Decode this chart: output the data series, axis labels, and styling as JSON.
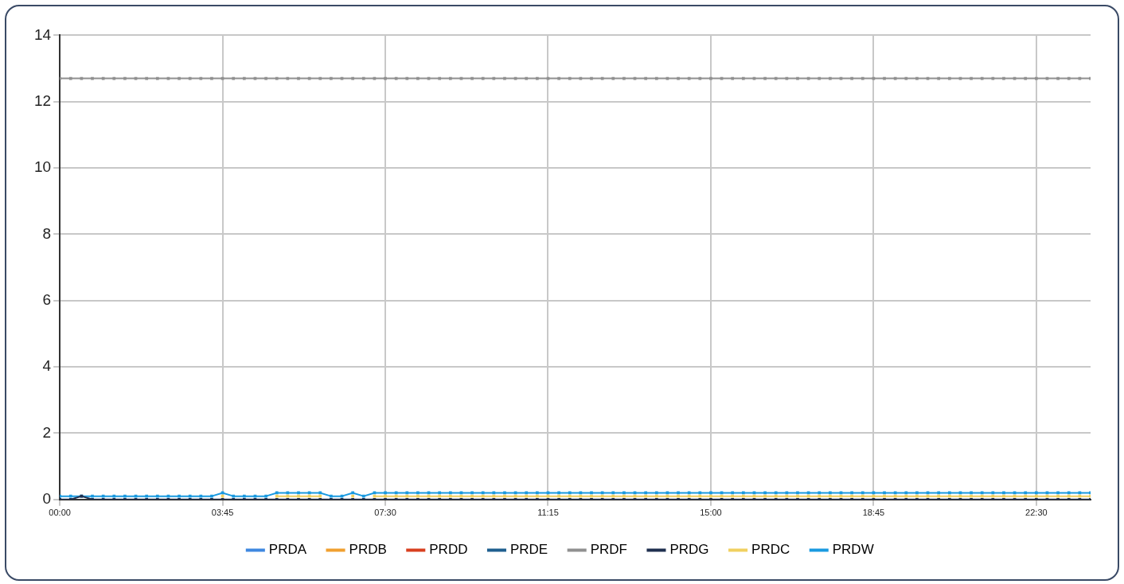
{
  "chart_data": {
    "type": "line",
    "x": [
      0,
      0.25,
      0.5,
      0.75,
      1,
      1.25,
      1.5,
      1.75,
      2,
      2.25,
      2.5,
      2.75,
      3,
      3.25,
      3.5,
      3.75,
      4,
      4.25,
      4.5,
      4.75,
      5,
      5.25,
      5.5,
      5.75,
      6,
      6.25,
      6.5,
      6.75,
      7,
      7.25,
      7.5,
      7.75,
      8,
      8.25,
      8.5,
      8.75,
      9,
      9.25,
      9.5,
      9.75,
      10,
      10.25,
      10.5,
      10.75,
      11,
      11.25,
      11.5,
      11.75,
      12,
      12.25,
      12.5,
      12.75,
      13,
      13.25,
      13.5,
      13.75,
      14,
      14.25,
      14.5,
      14.75,
      15,
      15.25,
      15.5,
      15.75,
      16,
      16.25,
      16.5,
      16.75,
      17,
      17.25,
      17.5,
      17.75,
      18,
      18.25,
      18.5,
      18.75,
      19,
      19.25,
      19.5,
      19.75,
      20,
      20.25,
      20.5,
      20.75,
      21,
      21.25,
      21.5,
      21.75,
      22,
      22.25,
      22.5,
      22.75,
      23,
      23.25,
      23.5,
      23.75
    ],
    "xlim": [
      0,
      23.75
    ],
    "xticks": [
      {
        "value": 0,
        "label": "00:00"
      },
      {
        "value": 3.75,
        "label": "03:45"
      },
      {
        "value": 7.5,
        "label": "07:30"
      },
      {
        "value": 11.25,
        "label": "11:15"
      },
      {
        "value": 15,
        "label": "15:00"
      },
      {
        "value": 18.75,
        "label": "18:45"
      },
      {
        "value": 22.5,
        "label": "22:30"
      }
    ],
    "ylim": [
      0,
      14
    ],
    "yticks": [
      0,
      2,
      4,
      6,
      8,
      10,
      12,
      14
    ],
    "grid": true,
    "legend": "bottom",
    "marker": "square",
    "line_style": "solid",
    "series": [
      {
        "name": "PRDA",
        "color": "#3f88e0",
        "values": [
          null,
          null,
          null,
          null,
          null,
          null,
          null,
          null,
          null,
          null,
          null,
          null,
          null,
          null,
          null,
          null,
          null,
          null,
          null,
          null,
          null,
          null,
          null,
          null,
          null,
          null,
          null,
          null,
          null,
          null,
          null,
          null,
          null,
          null,
          null,
          null,
          null,
          null,
          null,
          null,
          null,
          null,
          null,
          null,
          null,
          null,
          null,
          null,
          null,
          null,
          null,
          null,
          null,
          null,
          null,
          null,
          null,
          null,
          null,
          null,
          null,
          null,
          null,
          null,
          null,
          null,
          null,
          null,
          null,
          null,
          null,
          null,
          null,
          null,
          null,
          null,
          null,
          null,
          null,
          null,
          null,
          null,
          null,
          null,
          null,
          null,
          null,
          null,
          null,
          null,
          null,
          null,
          null,
          null,
          null,
          null
        ]
      },
      {
        "name": "PRDB",
        "color": "#f0a030",
        "values": [
          null,
          null,
          null,
          null,
          null,
          null,
          null,
          null,
          null,
          null,
          null,
          null,
          null,
          null,
          null,
          null,
          null,
          null,
          null,
          null,
          null,
          null,
          null,
          null,
          null,
          null,
          null,
          null,
          null,
          null,
          null,
          null,
          null,
          null,
          null,
          null,
          null,
          null,
          null,
          null,
          null,
          null,
          null,
          null,
          null,
          null,
          null,
          null,
          null,
          null,
          null,
          null,
          null,
          null,
          null,
          null,
          null,
          null,
          null,
          null,
          null,
          null,
          null,
          null,
          null,
          null,
          null,
          null,
          null,
          null,
          null,
          null,
          null,
          null,
          null,
          null,
          null,
          null,
          null,
          null,
          null,
          null,
          null,
          null,
          null,
          null,
          null,
          null,
          null,
          null,
          null,
          null,
          null,
          null,
          null,
          null
        ]
      },
      {
        "name": "PRDD",
        "color": "#d84020",
        "values": [
          null,
          null,
          null,
          null,
          null,
          null,
          null,
          null,
          null,
          null,
          null,
          null,
          null,
          null,
          null,
          null,
          null,
          null,
          null,
          null,
          null,
          null,
          null,
          null,
          null,
          null,
          null,
          null,
          null,
          null,
          null,
          null,
          null,
          null,
          null,
          null,
          null,
          null,
          null,
          null,
          null,
          null,
          null,
          null,
          null,
          null,
          null,
          null,
          null,
          null,
          null,
          null,
          null,
          null,
          null,
          null,
          null,
          null,
          null,
          null,
          null,
          null,
          null,
          null,
          null,
          null,
          null,
          null,
          null,
          null,
          null,
          null,
          null,
          null,
          null,
          null,
          null,
          null,
          null,
          null,
          null,
          null,
          null,
          null,
          null,
          null,
          null,
          null,
          null,
          null,
          null,
          null,
          null,
          null,
          null,
          null
        ]
      },
      {
        "name": "PRDE",
        "color": "#1f5f8f",
        "values": [
          null,
          null,
          null,
          null,
          null,
          null,
          null,
          null,
          null,
          null,
          null,
          null,
          null,
          null,
          null,
          null,
          null,
          null,
          null,
          null,
          null,
          null,
          null,
          null,
          null,
          null,
          null,
          null,
          null,
          null,
          null,
          null,
          null,
          null,
          null,
          null,
          null,
          null,
          null,
          null,
          null,
          null,
          null,
          null,
          null,
          null,
          null,
          null,
          null,
          null,
          null,
          null,
          null,
          null,
          null,
          null,
          null,
          null,
          null,
          null,
          null,
          null,
          null,
          null,
          null,
          null,
          null,
          null,
          null,
          null,
          null,
          null,
          null,
          null,
          null,
          null,
          null,
          null,
          null,
          null,
          null,
          null,
          null,
          null,
          null,
          null,
          null,
          null,
          null,
          null,
          null,
          null,
          null,
          null,
          null,
          null
        ]
      },
      {
        "name": "PRDF",
        "color": "#909090",
        "values": [
          12.7,
          12.7,
          12.7,
          12.7,
          12.7,
          12.7,
          12.7,
          12.7,
          12.7,
          12.7,
          12.7,
          12.7,
          12.7,
          12.7,
          12.7,
          12.7,
          12.7,
          12.7,
          12.7,
          12.7,
          12.7,
          12.7,
          12.7,
          12.7,
          12.7,
          12.7,
          12.7,
          12.7,
          12.7,
          12.7,
          12.7,
          12.7,
          12.7,
          12.7,
          12.7,
          12.7,
          12.7,
          12.7,
          12.7,
          12.7,
          12.7,
          12.7,
          12.7,
          12.7,
          12.7,
          12.7,
          12.7,
          12.7,
          12.7,
          12.7,
          12.7,
          12.7,
          12.7,
          12.7,
          12.7,
          12.7,
          12.7,
          12.7,
          12.7,
          12.7,
          12.7,
          12.7,
          12.7,
          12.7,
          12.7,
          12.7,
          12.7,
          12.7,
          12.7,
          12.7,
          12.7,
          12.7,
          12.7,
          12.7,
          12.7,
          12.7,
          12.7,
          12.7,
          12.7,
          12.7,
          12.7,
          12.7,
          12.7,
          12.7,
          12.7,
          12.7,
          12.7,
          12.7,
          12.7,
          12.7,
          12.7,
          12.7,
          12.7,
          12.7,
          12.7,
          12.7
        ]
      },
      {
        "name": "PRDG",
        "color": "#1f2f4f",
        "values": [
          0,
          0,
          0.1,
          0,
          0,
          0,
          0,
          0,
          0,
          0,
          0,
          0,
          0,
          0,
          0,
          0,
          0,
          0,
          0,
          0,
          0,
          0,
          0,
          0,
          0,
          0,
          0,
          0,
          0,
          0,
          0,
          0,
          0,
          0,
          0,
          0,
          0,
          0,
          0,
          0,
          0,
          0,
          0,
          0,
          0,
          0,
          0,
          0,
          0,
          0,
          0,
          0,
          0,
          0,
          0,
          0,
          0,
          0,
          0,
          0,
          0,
          0,
          0,
          0,
          0,
          0,
          0,
          0,
          0,
          0,
          0,
          0,
          0,
          0,
          0,
          0,
          0,
          0,
          0,
          0,
          0,
          0,
          0,
          0,
          0,
          0,
          0,
          0,
          0,
          0,
          0,
          0,
          0,
          0,
          0,
          0
        ]
      },
      {
        "name": "PRDC",
        "color": "#f0d060",
        "values": [
          null,
          null,
          null,
          null,
          null,
          null,
          null,
          null,
          null,
          null,
          null,
          null,
          null,
          null,
          null,
          0.1,
          null,
          null,
          null,
          null,
          0.1,
          0.1,
          0.1,
          0.1,
          0.1,
          null,
          null,
          0.1,
          null,
          0.1,
          0.1,
          0.1,
          0.1,
          0.1,
          0.1,
          0.1,
          0.1,
          0.1,
          0.1,
          0.1,
          0.1,
          0.1,
          0.1,
          0.1,
          0.1,
          0.1,
          0.1,
          0.1,
          0.1,
          0.1,
          0.1,
          0.1,
          0.1,
          0.1,
          0.1,
          0.1,
          0.1,
          0.1,
          0.1,
          0.1,
          0.1,
          0.1,
          0.1,
          0.1,
          0.1,
          0.1,
          0.1,
          0.1,
          0.1,
          0.1,
          0.1,
          0.1,
          0.1,
          0.1,
          0.1,
          0.1,
          0.1,
          0.1,
          0.1,
          0.1,
          0.1,
          0.1,
          0.1,
          0.1,
          0.1,
          0.1,
          0.1,
          0.1,
          0.1,
          0.1,
          0.1,
          0.1,
          0.1,
          0.1,
          0.1,
          0.1
        ]
      },
      {
        "name": "PRDW",
        "color": "#1a9ae0",
        "values": [
          0.1,
          0.1,
          0.1,
          0.1,
          0.1,
          0.1,
          0.1,
          0.1,
          0.1,
          0.1,
          0.1,
          0.1,
          0.1,
          0.1,
          0.1,
          0.2,
          0.1,
          0.1,
          0.1,
          0.1,
          0.2,
          0.2,
          0.2,
          0.2,
          0.2,
          0.1,
          0.1,
          0.2,
          0.1,
          0.2,
          0.2,
          0.2,
          0.2,
          0.2,
          0.2,
          0.2,
          0.2,
          0.2,
          0.2,
          0.2,
          0.2,
          0.2,
          0.2,
          0.2,
          0.2,
          0.2,
          0.2,
          0.2,
          0.2,
          0.2,
          0.2,
          0.2,
          0.2,
          0.2,
          0.2,
          0.2,
          0.2,
          0.2,
          0.2,
          0.2,
          0.2,
          0.2,
          0.2,
          0.2,
          0.2,
          0.2,
          0.2,
          0.2,
          0.2,
          0.2,
          0.2,
          0.2,
          0.2,
          0.2,
          0.2,
          0.2,
          0.2,
          0.2,
          0.2,
          0.2,
          0.2,
          0.2,
          0.2,
          0.2,
          0.2,
          0.2,
          0.2,
          0.2,
          0.2,
          0.2,
          0.2,
          0.2,
          0.2,
          0.2,
          0.2,
          0.2
        ]
      }
    ]
  }
}
